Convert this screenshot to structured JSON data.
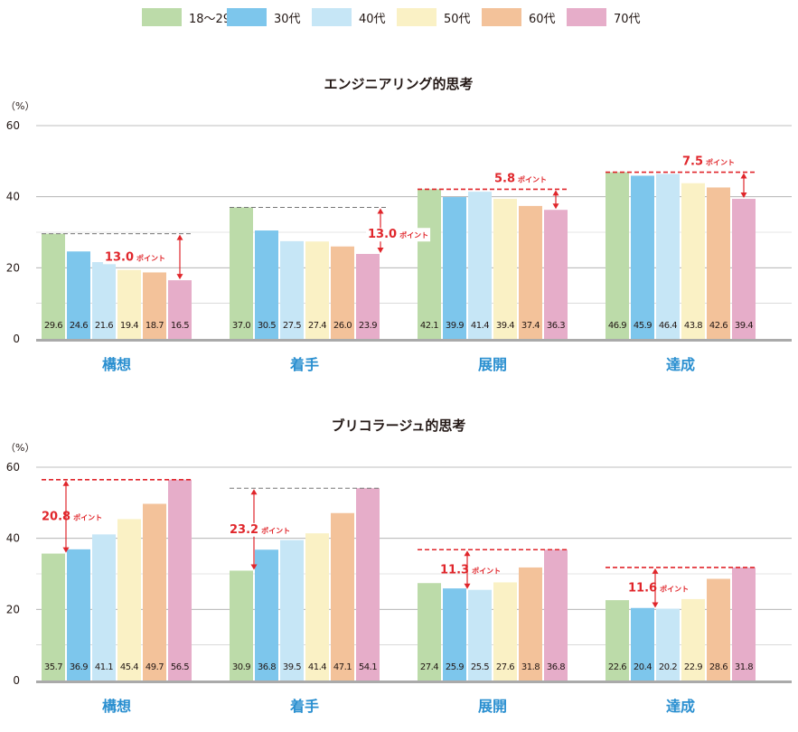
{
  "legend": [
    {
      "label": "18〜29歳",
      "color": "#bcdba9"
    },
    {
      "label": "30代",
      "color": "#7dc6ec"
    },
    {
      "label": "40代",
      "color": "#c6e6f6"
    },
    {
      "label": "50代",
      "color": "#faf1c5"
    },
    {
      "label": "60代",
      "color": "#f3c29a"
    },
    {
      "label": "70代",
      "color": "#e6adc9"
    }
  ],
  "chart_data": [
    {
      "type": "bar",
      "title": "エンジニアリング的思考",
      "ylabel": "（%）",
      "ylim": [
        0,
        60
      ],
      "yticks": [
        "0",
        "20",
        "40",
        "60"
      ],
      "categories": [
        "構想",
        "着手",
        "展開",
        "達成"
      ],
      "series": [
        {
          "name": "18〜29歳",
          "values": [
            29.6,
            37.0,
            42.1,
            46.9
          ]
        },
        {
          "name": "30代",
          "values": [
            24.6,
            30.5,
            39.9,
            45.9
          ]
        },
        {
          "name": "40代",
          "values": [
            21.6,
            27.5,
            41.4,
            46.4
          ]
        },
        {
          "name": "50代",
          "values": [
            19.4,
            27.4,
            39.4,
            43.8
          ]
        },
        {
          "name": "60代",
          "values": [
            18.7,
            26.0,
            37.4,
            42.6
          ]
        },
        {
          "name": "70代",
          "values": [
            16.5,
            23.9,
            36.3,
            39.4
          ]
        }
      ],
      "value_labels": [
        [
          "29.6",
          "24.6",
          "21.6",
          "19.4",
          "18.7",
          "16.5"
        ],
        [
          "37.0",
          "30.5",
          "27.5",
          "27.4",
          "26.0",
          "23.9"
        ],
        [
          "42.1",
          "39.9",
          "41.4",
          "39.4",
          "37.4",
          "36.3"
        ],
        [
          "46.9",
          "45.9",
          "46.4",
          "43.8",
          "42.6",
          "39.4"
        ]
      ],
      "annotations": [
        {
          "group": 0,
          "from": 29.6,
          "to": 16.5,
          "value": "13.0",
          "unit": "ポイント",
          "style": "gray",
          "arrow_bar": 5,
          "label_pos": "left"
        },
        {
          "group": 1,
          "from": 37.0,
          "to": 23.9,
          "value": "13.0",
          "unit": "ポイント",
          "style": "gray",
          "arrow_bar": 5.5,
          "label_pos": "below"
        },
        {
          "group": 2,
          "from": 42.1,
          "to": 36.3,
          "value": "5.8",
          "unit": "ポイント",
          "style": "red",
          "arrow_bar": 5,
          "label_pos": "above"
        },
        {
          "group": 3,
          "from": 46.9,
          "to": 39.4,
          "value": "7.5",
          "unit": "ポイント",
          "style": "red",
          "arrow_bar": 5,
          "label_pos": "above"
        }
      ]
    },
    {
      "type": "bar",
      "title": "ブリコラージュ的思考",
      "ylabel": "（%）",
      "ylim": [
        0,
        60
      ],
      "yticks": [
        "0",
        "20",
        "40",
        "60"
      ],
      "categories": [
        "構想",
        "着手",
        "展開",
        "達成"
      ],
      "series": [
        {
          "name": "18〜29歳",
          "values": [
            35.7,
            30.9,
            27.4,
            22.6
          ]
        },
        {
          "name": "30代",
          "values": [
            36.9,
            36.8,
            25.9,
            20.4
          ]
        },
        {
          "name": "40代",
          "values": [
            41.1,
            39.5,
            25.5,
            20.2
          ]
        },
        {
          "name": "50代",
          "values": [
            45.4,
            41.4,
            27.6,
            22.9
          ]
        },
        {
          "name": "60代",
          "values": [
            49.7,
            47.1,
            31.8,
            28.6
          ]
        },
        {
          "name": "70代",
          "values": [
            56.5,
            54.1,
            36.8,
            31.8
          ]
        }
      ],
      "value_labels": [
        [
          "35.7",
          "36.9",
          "41.1",
          "45.4",
          "49.7",
          "56.5"
        ],
        [
          "30.9",
          "36.8",
          "39.5",
          "41.4",
          "47.1",
          "54.1"
        ],
        [
          "27.4",
          "25.9",
          "25.5",
          "27.6",
          "31.8",
          "36.8"
        ],
        [
          "22.6",
          "20.4",
          "20.2",
          "22.9",
          "28.6",
          "31.8"
        ]
      ],
      "annotations": [
        {
          "group": 0,
          "from": 56.5,
          "to": 35.7,
          "value": "20.8",
          "unit": "ポイント",
          "style": "red",
          "arrow_bar": 0.5,
          "label_pos": "middle"
        },
        {
          "group": 1,
          "from": 54.1,
          "to": 30.9,
          "value": "23.2",
          "unit": "ポイント",
          "style": "gray",
          "arrow_bar": 0.5,
          "label_pos": "middle"
        },
        {
          "group": 2,
          "from": 36.8,
          "to": 25.5,
          "value": "11.3",
          "unit": "ポイント",
          "style": "red",
          "arrow_bar": 1.5,
          "label_pos": "middle"
        },
        {
          "group": 3,
          "from": 31.8,
          "to": 20.2,
          "value": "11.6",
          "unit": "ポイント",
          "style": "red",
          "arrow_bar": 1.5,
          "label_pos": "middle"
        }
      ]
    }
  ]
}
